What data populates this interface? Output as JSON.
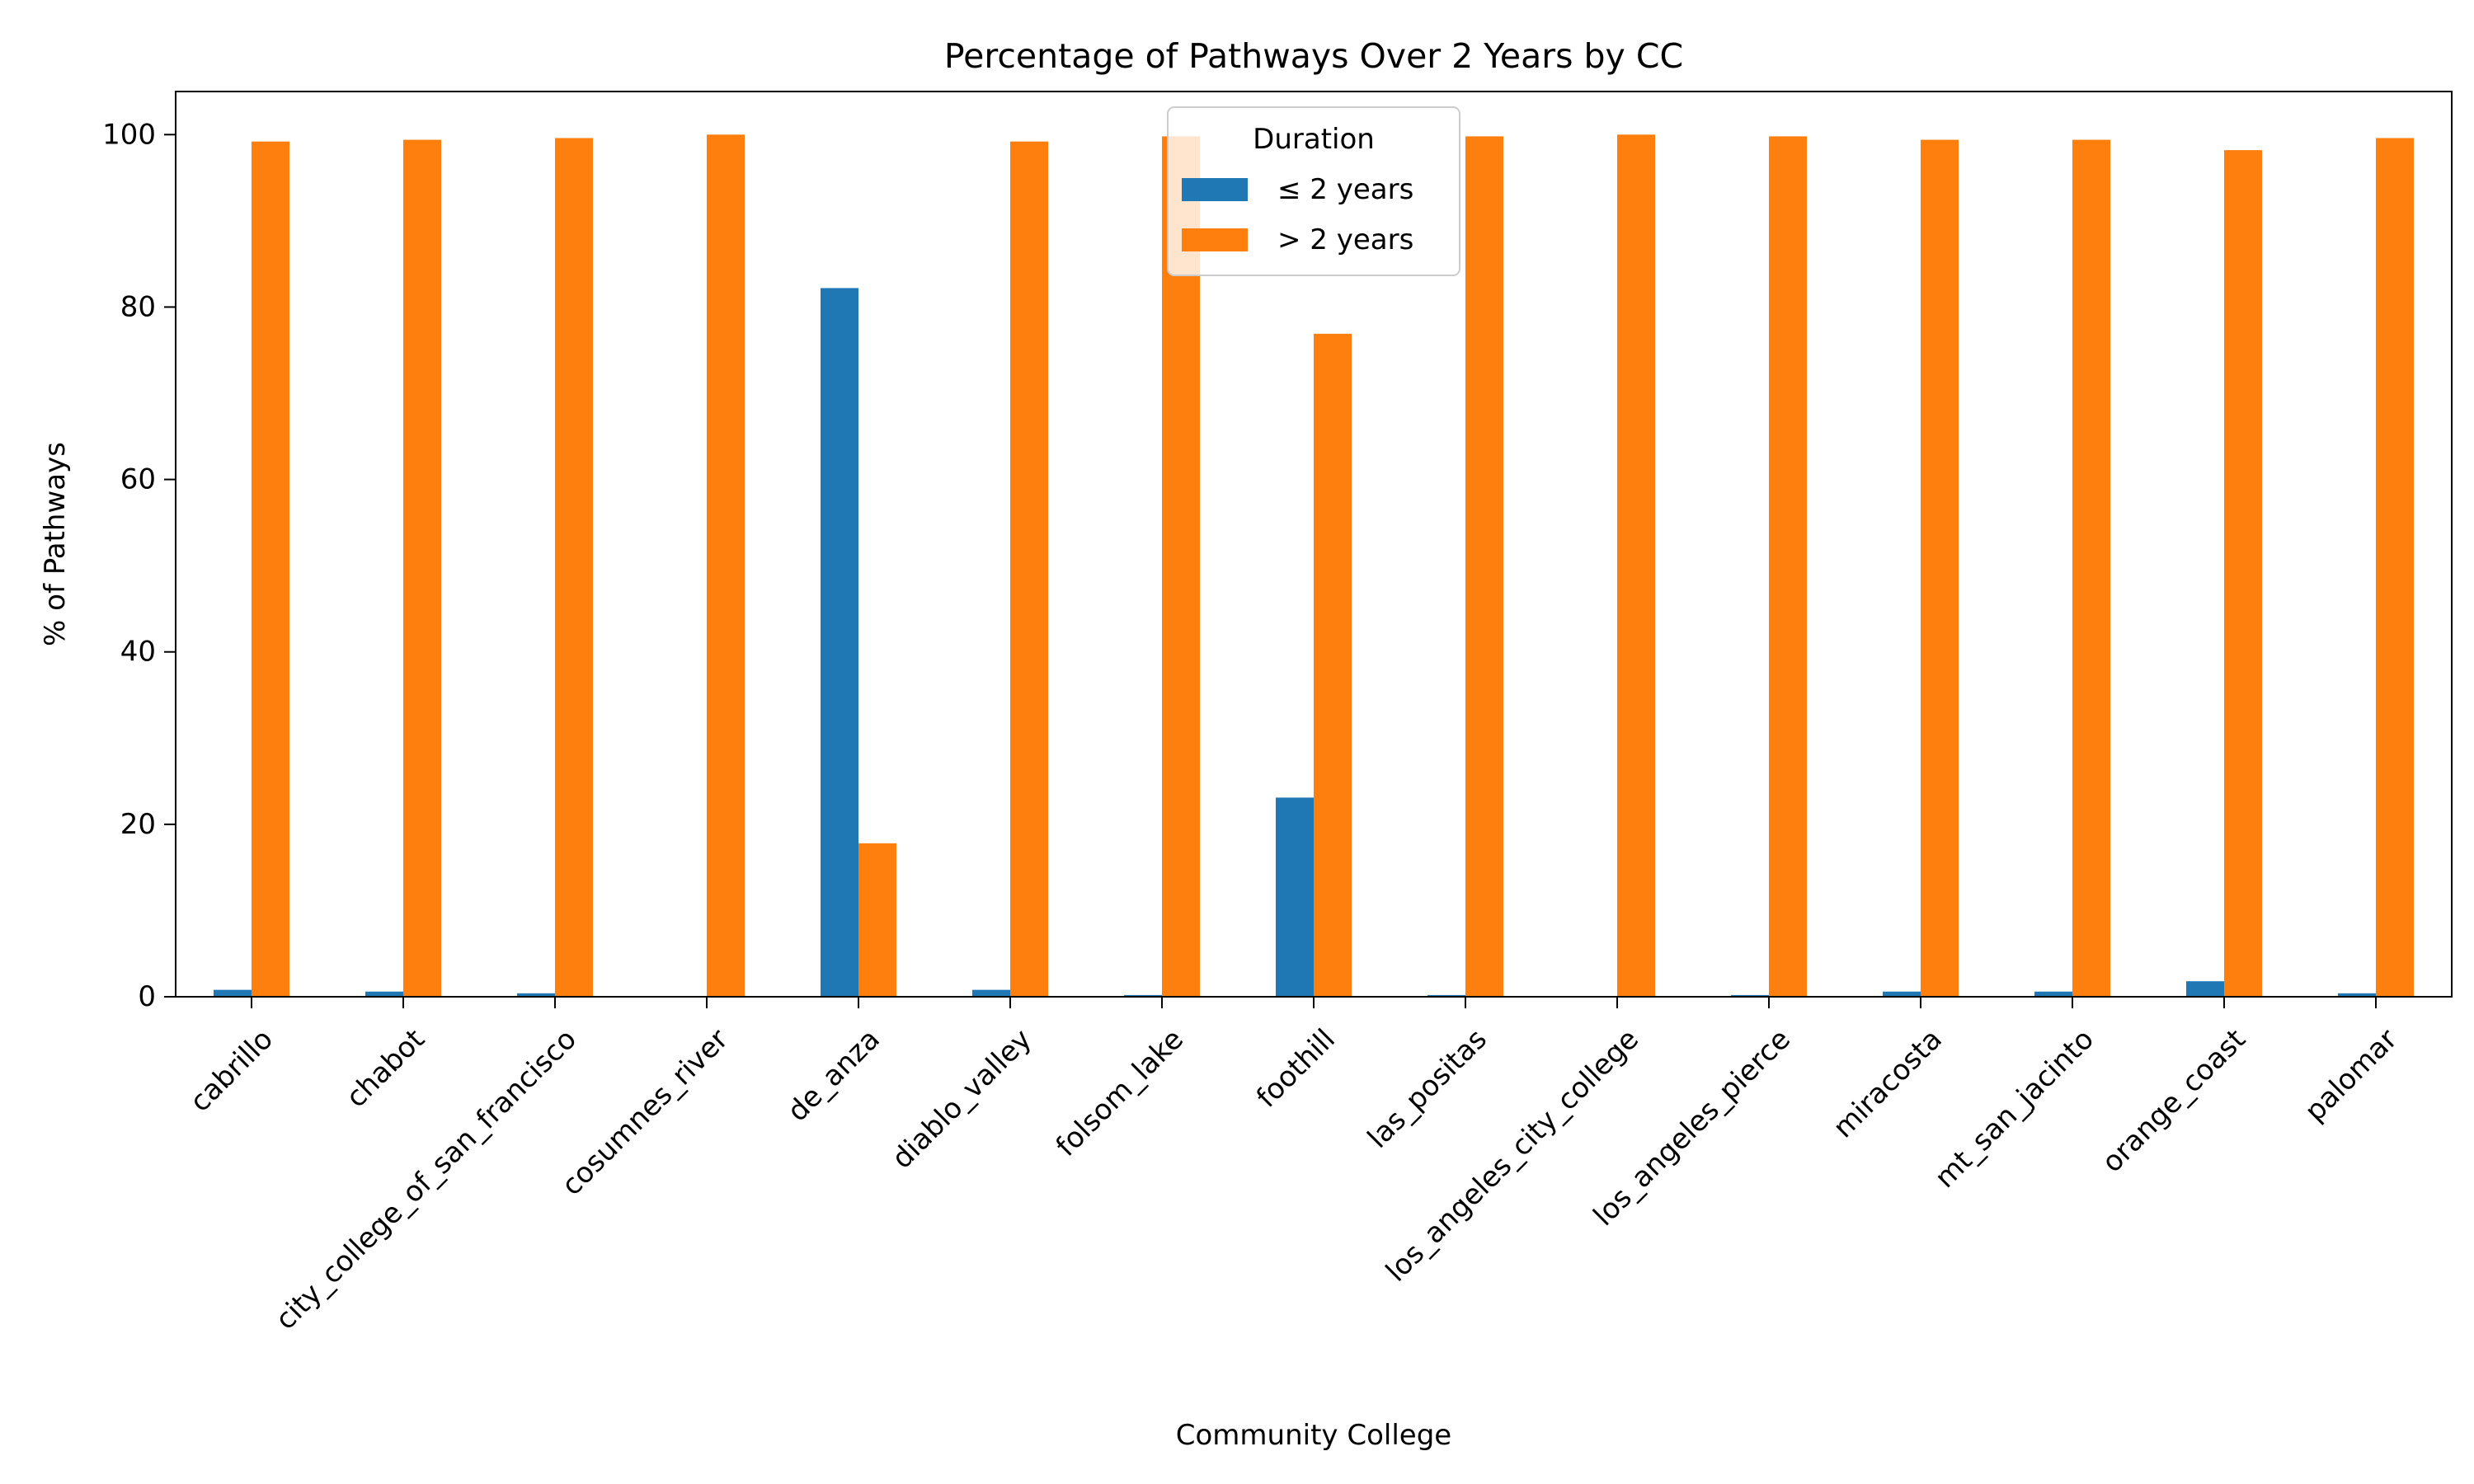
{
  "chart_data": {
    "type": "bar",
    "title": "Percentage of Pathways Over 2 Years by CC",
    "xlabel": "Community College",
    "ylabel": "% of Pathways",
    "ylim": [
      0,
      105
    ],
    "yticks": [
      0,
      20,
      40,
      60,
      80,
      100
    ],
    "categories": [
      "cabrillo",
      "chabot",
      "city_college_of_san_francisco",
      "cosumnes_river",
      "de_anza",
      "diablo_valley",
      "folsom_lake",
      "foothill",
      "las_positas",
      "los_angeles_city_college",
      "los_angeles_pierce",
      "miracosta",
      "mt_san_jacinto",
      "orange_coast",
      "palomar"
    ],
    "series": [
      {
        "name": "≤ 2 years",
        "color": "#1f77b4",
        "values": [
          0.8,
          0.6,
          0.4,
          0.0,
          82.2,
          0.8,
          0.2,
          23.1,
          0.2,
          0.0,
          0.2,
          0.6,
          0.6,
          1.8,
          0.4
        ]
      },
      {
        "name": "> 2 years",
        "color": "#ff7f0e",
        "values": [
          99.2,
          99.4,
          99.6,
          100.0,
          17.8,
          99.2,
          99.8,
          76.9,
          99.8,
          100.0,
          99.8,
          99.4,
          99.4,
          98.2,
          99.6
        ]
      }
    ],
    "legend": {
      "title": "Duration",
      "placement": "upper-center"
    },
    "grid": false
  }
}
